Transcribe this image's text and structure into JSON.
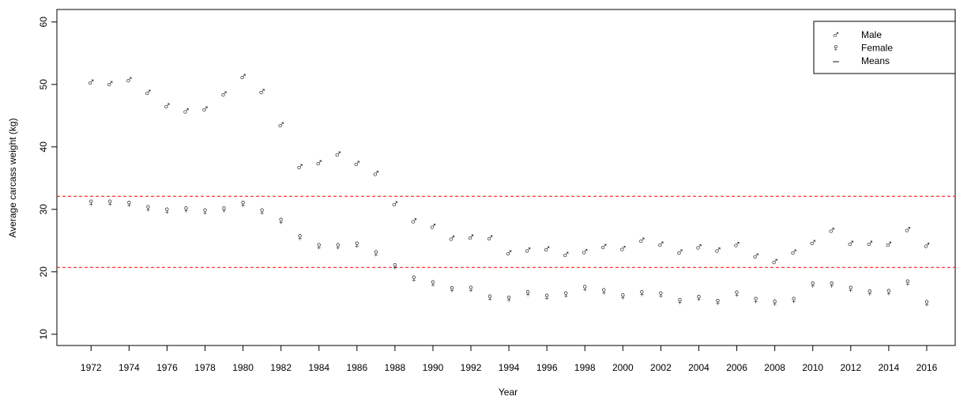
{
  "chart_data": {
    "type": "scatter",
    "x_label": "Year",
    "y_label": "Average carcass weight (kg)",
    "x": [
      1972,
      1973,
      1974,
      1975,
      1976,
      1977,
      1978,
      1979,
      1980,
      1981,
      1982,
      1983,
      1984,
      1985,
      1986,
      1987,
      1988,
      1989,
      1990,
      1991,
      1992,
      1993,
      1994,
      1995,
      1996,
      1997,
      1998,
      1999,
      2000,
      2001,
      2002,
      2003,
      2004,
      2005,
      2006,
      2007,
      2008,
      2009,
      2010,
      2011,
      2012,
      2013,
      2014,
      2015,
      2016
    ],
    "series": [
      {
        "name": "Male",
        "symbol": "♂",
        "color": "#ff0000",
        "values": [
          50.2,
          50.0,
          50.6,
          48.6,
          46.4,
          45.6,
          45.9,
          48.3,
          51.1,
          48.7,
          43.4,
          36.7,
          37.3,
          38.7,
          37.2,
          35.6,
          30.7,
          28.0,
          27.1,
          25.2,
          25.4,
          25.3,
          22.9,
          23.3,
          23.5,
          22.6,
          23.1,
          23.9,
          23.6,
          24.9,
          24.3,
          23.0,
          23.8,
          23.3,
          24.2,
          22.4,
          21.5,
          23.0,
          24.5,
          26.5,
          24.4,
          24.4,
          24.3,
          26.6,
          24.1
        ]
      },
      {
        "name": "Female",
        "symbol": "♀",
        "color": "#ff0000",
        "values": [
          31.0,
          31.0,
          30.8,
          30.1,
          29.7,
          29.9,
          29.6,
          29.9,
          30.8,
          29.6,
          28.1,
          25.5,
          24.0,
          24.0,
          24.3,
          22.9,
          20.8,
          18.8,
          18.1,
          17.1,
          17.2,
          15.8,
          15.6,
          16.5,
          15.9,
          16.3,
          17.3,
          16.8,
          16.0,
          16.5,
          16.3,
          15.2,
          15.7,
          15.1,
          16.4,
          15.4,
          15.0,
          15.4,
          17.9,
          17.9,
          17.2,
          16.6,
          16.7,
          18.2,
          14.9
        ]
      }
    ],
    "reference_lines": {
      "name": "Means",
      "symbol": "–",
      "color": "#ff0000",
      "values": [
        32.1,
        20.7
      ]
    },
    "xlim": [
      1970.2,
      2017.5
    ],
    "xticks": [
      1972,
      1974,
      1976,
      1978,
      1980,
      1982,
      1984,
      1986,
      1988,
      1990,
      1992,
      1994,
      1996,
      1998,
      2000,
      2002,
      2004,
      2006,
      2008,
      2010,
      2012,
      2014,
      2016
    ],
    "ylim": [
      8.2,
      62
    ],
    "yticks": [
      10,
      20,
      30,
      40,
      50,
      60
    ],
    "legend": "top-right"
  }
}
